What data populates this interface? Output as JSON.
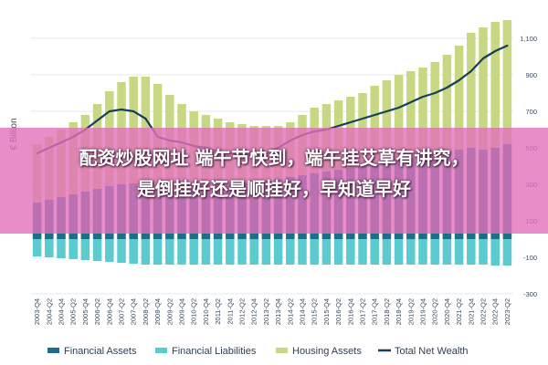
{
  "chart_data": {
    "type": "area",
    "title": "",
    "xlabel": "",
    "ylabel": "€ Billion",
    "ylim": [
      -300,
      1200
    ],
    "yticks": [
      -300,
      -100,
      100,
      300,
      500,
      700,
      900,
      1100
    ],
    "ytick_labels": [
      "-300",
      "-100",
      "100",
      "300",
      "500",
      "700",
      "900",
      "1,100"
    ],
    "grid": true,
    "legend_position": "bottom",
    "xtick_labels": [
      "2003-Q4",
      "2004-Q2",
      "2004-Q4",
      "2005-Q2",
      "2005-Q4",
      "2006-Q2",
      "2006-Q4",
      "2007-Q2",
      "2007-Q4",
      "2008-Q2",
      "2008-Q4",
      "2009-Q2",
      "2009-Q4",
      "2010-Q2",
      "2010-Q4",
      "2011-Q2",
      "2011-Q4",
      "2012-Q2",
      "2012-Q4",
      "2013-Q2",
      "2013-Q4",
      "2014-Q2",
      "2014-Q4",
      "2015-Q2",
      "2015-Q4",
      "2016-Q2",
      "2016-Q4",
      "2017-Q2",
      "2017-Q4",
      "2018-Q2",
      "2018-Q4",
      "2019-Q2",
      "2019-Q4",
      "2020-Q2",
      "2020-Q4",
      "2021-Q2",
      "2021-Q4",
      "2022-Q2",
      "2022-Q4",
      "2023-Q2"
    ],
    "x": [
      "2003-Q4",
      "2004-Q2",
      "2004-Q4",
      "2005-Q2",
      "2005-Q4",
      "2006-Q2",
      "2006-Q4",
      "2007-Q2",
      "2007-Q4",
      "2008-Q2",
      "2008-Q4",
      "2009-Q2",
      "2009-Q4",
      "2010-Q2",
      "2010-Q4",
      "2011-Q2",
      "2011-Q4",
      "2012-Q2",
      "2012-Q4",
      "2013-Q2",
      "2013-Q4",
      "2014-Q2",
      "2014-Q4",
      "2015-Q2",
      "2015-Q4",
      "2016-Q2",
      "2016-Q4",
      "2017-Q2",
      "2017-Q4",
      "2018-Q2",
      "2018-Q4",
      "2019-Q2",
      "2019-Q4",
      "2020-Q2",
      "2020-Q4",
      "2021-Q2",
      "2021-Q4",
      "2022-Q2",
      "2022-Q4",
      "2023-Q2"
    ],
    "series": [
      {
        "name": "Financial Assets",
        "type": "bar",
        "color": "#1d6e8a",
        "values": [
          200,
          215,
          230,
          245,
          260,
          275,
          290,
          300,
          305,
          300,
          285,
          280,
          285,
          290,
          295,
          300,
          300,
          305,
          310,
          320,
          330,
          340,
          350,
          360,
          370,
          380,
          390,
          400,
          415,
          425,
          435,
          445,
          460,
          470,
          480,
          490,
          500,
          490,
          500,
          520
        ]
      },
      {
        "name": "Financial Liabilities",
        "type": "bar",
        "color": "#5ccbcf",
        "values": [
          -95,
          -100,
          -105,
          -110,
          -115,
          -120,
          -125,
          -130,
          -135,
          -140,
          -140,
          -140,
          -140,
          -140,
          -140,
          -140,
          -140,
          -140,
          -140,
          -140,
          -140,
          -140,
          -140,
          -140,
          -140,
          -140,
          -140,
          -140,
          -140,
          -140,
          -140,
          -140,
          -140,
          -140,
          -140,
          -140,
          -140,
          -140,
          -145,
          -145
        ]
      },
      {
        "name": "Housing Assets",
        "type": "bar",
        "color": "#c8d882",
        "values": [
          520,
          560,
          600,
          640,
          680,
          740,
          810,
          860,
          890,
          890,
          850,
          790,
          740,
          700,
          680,
          660,
          640,
          630,
          620,
          620,
          620,
          640,
          680,
          720,
          740,
          760,
          780,
          800,
          840,
          870,
          900,
          920,
          940,
          970,
          1010,
          1060,
          1130,
          1160,
          1190,
          1200
        ]
      },
      {
        "name": "Total Net Wealth",
        "type": "line",
        "color": "#163f5c",
        "values": [
          470,
          500,
          530,
          560,
          600,
          650,
          700,
          710,
          700,
          660,
          560,
          540,
          530,
          510,
          500,
          480,
          470,
          460,
          460,
          470,
          500,
          540,
          570,
          590,
          600,
          620,
          640,
          660,
          680,
          700,
          720,
          750,
          780,
          800,
          830,
          870,
          920,
          990,
          1030,
          1060
        ]
      }
    ]
  },
  "legend": [
    {
      "label": "Financial Assets",
      "color": "#1d6e8a",
      "kind": "box"
    },
    {
      "label": "Financial Liabilities",
      "color": "#5ccbcf",
      "kind": "box"
    },
    {
      "label": "Housing Assets",
      "color": "#c8d882",
      "kind": "box"
    },
    {
      "label": "Total Net Wealth",
      "color": "#163f5c",
      "kind": "line"
    }
  ],
  "overlay": {
    "line1": "配资炒股网址 端午节快到，端午挂艾草有讲究，",
    "line2": "是倒挂好还是顺挂好，早知道早好",
    "band_color": "#e270ba"
  }
}
